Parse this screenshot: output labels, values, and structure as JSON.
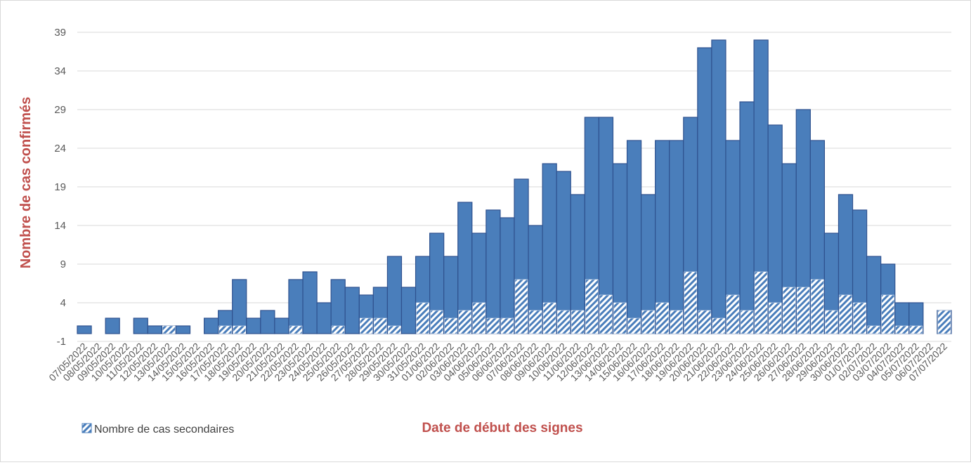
{
  "chart_data": {
    "type": "bar",
    "title": "",
    "xlabel": "Date de début des signes",
    "ylabel": "Nombre de cas confirmés",
    "ylim": [
      -1,
      39
    ],
    "yticks": [
      "-1",
      "4",
      "9",
      "14",
      "19",
      "24",
      "29",
      "34",
      "39"
    ],
    "grid": true,
    "legend_position": "bottom-left",
    "colors": {
      "total": "#4a7ebb",
      "secondary": "#4a7ebb",
      "axis_title": "#c0504d",
      "grid": "#d9d9d9",
      "tick": "#595959"
    },
    "categories": [
      "07/05/2022",
      "08/05/2022",
      "09/05/2022",
      "10/05/2022",
      "11/05/2022",
      "12/05/2022",
      "13/05/2022",
      "14/05/2022",
      "15/05/2022",
      "16/05/2022",
      "17/05/2022",
      "18/05/2022",
      "19/05/2022",
      "20/05/2022",
      "21/05/2022",
      "22/05/2022",
      "23/05/2022",
      "24/05/2022",
      "25/05/2022",
      "26/05/2022",
      "27/05/2022",
      "28/05/2022",
      "29/05/2022",
      "30/05/2022",
      "31/05/2022",
      "01/06/2022",
      "02/06/2022",
      "03/06/2022",
      "04/06/2022",
      "05/06/2022",
      "06/06/2022",
      "07/06/2022",
      "08/06/2022",
      "09/06/2022",
      "10/06/2022",
      "11/06/2022",
      "12/06/2022",
      "13/06/2022",
      "14/06/2022",
      "15/06/2022",
      "16/06/2022",
      "17/06/2022",
      "18/06/2022",
      "19/06/2022",
      "20/06/2022",
      "21/06/2022",
      "22/06/2022",
      "23/06/2022",
      "24/06/2022",
      "25/06/2022",
      "26/06/2022",
      "27/06/2022",
      "28/06/2022",
      "29/06/2022",
      "30/06/2022",
      "01/07/2022",
      "02/07/2022",
      "03/07/2022",
      "04/07/2022",
      "05/07/2022",
      "06/07/2022",
      "07/07/2022"
    ],
    "series": [
      {
        "name": "",
        "values": [
          1,
          0,
          2,
          0,
          2,
          1,
          1,
          1,
          0,
          2,
          3,
          7,
          2,
          3,
          2,
          7,
          8,
          4,
          7,
          6,
          5,
          6,
          10,
          6,
          10,
          13,
          10,
          17,
          13,
          16,
          15,
          20,
          14,
          22,
          21,
          18,
          28,
          28,
          22,
          25,
          18,
          25,
          25,
          28,
          37,
          38,
          25,
          30,
          38,
          27,
          22,
          29,
          25,
          13,
          18,
          16,
          10,
          9,
          4,
          4,
          0,
          3
        ]
      },
      {
        "name": "Nombre de cas secondaires",
        "values": [
          0,
          0,
          0,
          0,
          0,
          0,
          1,
          0,
          0,
          0,
          1,
          1,
          0,
          0,
          0,
          1,
          0,
          0,
          1,
          0,
          2,
          2,
          1,
          0,
          4,
          3,
          2,
          3,
          4,
          2,
          2,
          7,
          3,
          4,
          3,
          3,
          7,
          5,
          4,
          2,
          3,
          4,
          3,
          8,
          3,
          2,
          5,
          3,
          8,
          4,
          6,
          6,
          7,
          3,
          5,
          4,
          1,
          5,
          1,
          1,
          0,
          3
        ]
      }
    ]
  }
}
